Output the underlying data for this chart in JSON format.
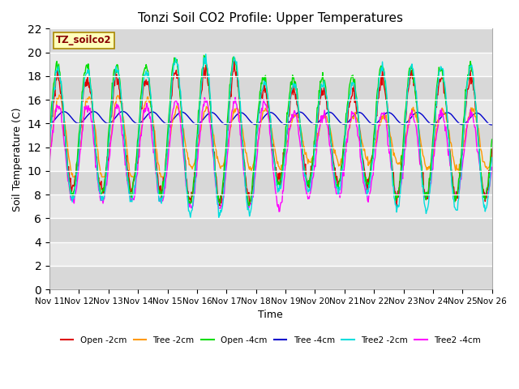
{
  "title": "Tonzi Soil CO2 Profile: Upper Temperatures",
  "xlabel": "Time",
  "ylabel": "Soil Temperature (C)",
  "ylim": [
    0,
    22
  ],
  "yticks": [
    0,
    2,
    4,
    6,
    8,
    10,
    12,
    14,
    16,
    18,
    20,
    22
  ],
  "background_color": "#ffffff",
  "plot_bg_color": "#e8e8e8",
  "title_fontsize": 11,
  "label_fontsize": 9,
  "tick_fontsize": 7.5,
  "watermark_text": "TZ_soilco2",
  "watermark_color": "#880000",
  "watermark_bg": "#ffffbb",
  "watermark_border": "#aa8800",
  "series": [
    {
      "label": "Open -2cm",
      "color": "#dd0000",
      "lw": 1.0
    },
    {
      "label": "Tree -2cm",
      "color": "#ff9900",
      "lw": 1.0
    },
    {
      "label": "Open -4cm",
      "color": "#00dd00",
      "lw": 1.0
    },
    {
      "label": "Tree -4cm",
      "color": "#0000cc",
      "lw": 1.0
    },
    {
      "label": "Tree2 -2cm",
      "color": "#00dddd",
      "lw": 1.0
    },
    {
      "label": "Tree2 -4cm",
      "color": "#ff00ff",
      "lw": 1.0
    }
  ],
  "n_days": 15,
  "pts_per_day": 48,
  "start_day": 11,
  "band_colors": [
    "#d8d8d8",
    "#e8e8e8"
  ]
}
